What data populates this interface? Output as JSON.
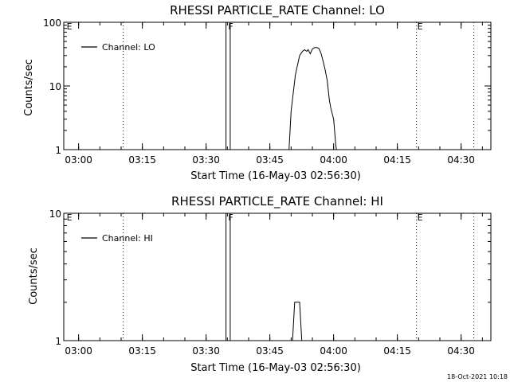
{
  "timestamp": "18-Oct-2021 10:18",
  "chart_data": [
    {
      "type": "line",
      "title": "RHESSI PARTICLE_RATE Channel: LO",
      "xlabel": "Start Time (16-May-03 02:56:30)",
      "ylabel": "Counts/sec",
      "yscale": "log",
      "xlim": [
        "02:56:30",
        "04:37:00"
      ],
      "ylim": [
        1,
        100
      ],
      "x_ticks": [
        "03:00",
        "03:15",
        "03:30",
        "03:45",
        "04:00",
        "04:15",
        "04:30"
      ],
      "y_ticks": [
        "1",
        "10",
        "100"
      ],
      "legend": {
        "placement": "top-left",
        "entries": [
          "Channel: LO"
        ]
      },
      "dotted_lines": [
        "03:10:30",
        "04:19:30",
        "04:33:00"
      ],
      "markers": [
        {
          "label": "E",
          "time": "02:57:00"
        },
        {
          "label": "F",
          "time": "03:35:00"
        },
        {
          "label": "E",
          "time": "04:19:30"
        }
      ],
      "series": [
        {
          "name": "Channel: LO",
          "points": [
            [
              "03:34:40",
              1
            ],
            [
              "03:34:40",
              100
            ],
            [
              "03:35:40",
              100
            ],
            [
              "03:35:40",
              1
            ],
            [
              "03:49:30",
              1
            ],
            [
              "03:50:00",
              4
            ],
            [
              "03:51:00",
              15
            ],
            [
              "03:52:00",
              30
            ],
            [
              "03:52:40",
              35
            ],
            [
              "03:53:10",
              37
            ],
            [
              "03:53:40",
              35
            ],
            [
              "03:54:00",
              37
            ],
            [
              "03:54:30",
              32
            ],
            [
              "03:55:00",
              38
            ],
            [
              "03:55:30",
              40
            ],
            [
              "03:56:00",
              40
            ],
            [
              "03:56:30",
              39
            ],
            [
              "03:57:00",
              33
            ],
            [
              "03:57:30",
              25
            ],
            [
              "03:58:00",
              18
            ],
            [
              "03:58:30",
              12
            ],
            [
              "03:59:00",
              6
            ],
            [
              "03:59:20",
              4.5
            ],
            [
              "04:00:00",
              3
            ],
            [
              "04:00:30",
              1.2
            ],
            [
              "04:00:40",
              1
            ]
          ]
        }
      ]
    },
    {
      "type": "line",
      "title": "RHESSI PARTICLE_RATE Channel: HI",
      "xlabel": "Start Time (16-May-03 02:56:30)",
      "ylabel": "Counts/sec",
      "yscale": "log",
      "xlim": [
        "02:56:30",
        "04:37:00"
      ],
      "ylim": [
        1,
        10
      ],
      "x_ticks": [
        "03:00",
        "03:15",
        "03:30",
        "03:45",
        "04:00",
        "04:15",
        "04:30"
      ],
      "y_ticks": [
        "1",
        "10"
      ],
      "legend": {
        "placement": "top-left",
        "entries": [
          "Channel: HI"
        ]
      },
      "dotted_lines": [
        "03:10:30",
        "04:19:30",
        "04:33:00"
      ],
      "markers": [
        {
          "label": "E",
          "time": "02:57:00"
        },
        {
          "label": "F",
          "time": "03:35:00"
        },
        {
          "label": "E",
          "time": "04:19:30"
        }
      ],
      "series": [
        {
          "name": "Channel: HI",
          "points": [
            [
              "03:34:40",
              1
            ],
            [
              "03:34:40",
              10
            ],
            [
              "03:35:40",
              10
            ],
            [
              "03:35:40",
              1
            ],
            [
              "03:50:20",
              1
            ],
            [
              "03:50:50",
              2
            ],
            [
              "03:52:00",
              2
            ],
            [
              "03:52:30",
              1
            ]
          ]
        }
      ]
    }
  ]
}
